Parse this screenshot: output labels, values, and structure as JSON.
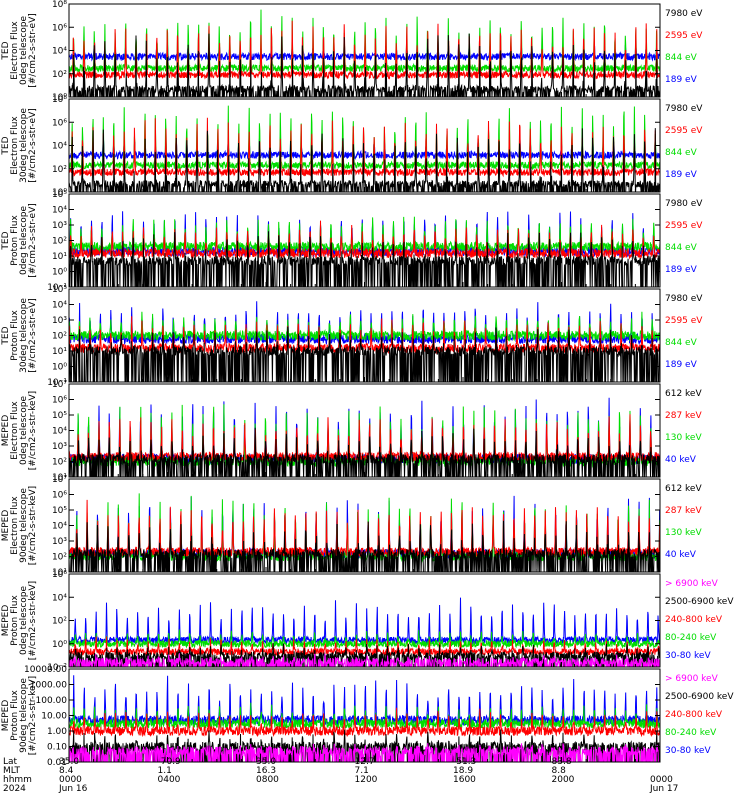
{
  "chart_data": {
    "type": "line",
    "x_time": {
      "tick_labels": [
        "0000",
        "0400",
        "0800",
        "1200",
        "1600",
        "2000",
        "0000"
      ],
      "start": "2024-06-16 00:00",
      "end": "2024-06-17 00:00"
    },
    "footer": {
      "row_labels": [
        "Lat",
        "MLT",
        "hhmm",
        "2024"
      ],
      "columns": [
        {
          "lat": "35.0",
          "mlt": "8.4",
          "hhmm": "0000",
          "date": "Jun 16"
        },
        {
          "lat": "-70.9",
          "mlt": "1.1",
          "hhmm": "0400",
          "date": ""
        },
        {
          "lat": "35.0",
          "mlt": "16.3",
          "hhmm": "0800",
          "date": ""
        },
        {
          "lat": "12.7",
          "mlt": "7.1",
          "hhmm": "1200",
          "date": ""
        },
        {
          "lat": "-51.3",
          "mlt": "18.9",
          "hhmm": "1600",
          "date": ""
        },
        {
          "lat": "83.8",
          "mlt": "8.8",
          "hhmm": "2000",
          "date": ""
        },
        {
          "lat": "",
          "mlt": "",
          "hhmm": "0000",
          "date": "Jun 17"
        }
      ]
    },
    "panels": [
      {
        "ylabel": [
          "TED",
          "Electron Flux",
          "0deg telescope",
          "[#/cm2-s-str-eV]"
        ],
        "yscale": "log",
        "ylim": [
          1,
          100000000
        ],
        "ytick_labels": [
          "10⁰",
          "10²",
          "10⁴",
          "10⁶",
          "10⁸"
        ],
        "legend": [
          {
            "name": "7980 eV",
            "color": "#000000"
          },
          {
            "name": "2595 eV",
            "color": "#ff0000"
          },
          {
            "name": "844 eV",
            "color": "#00dd00"
          },
          {
            "name": "189 eV",
            "color": "#0000ff"
          }
        ],
        "series_levels": {
          "baseline": [
            5,
            80,
            300,
            3000
          ],
          "peak_max": [
            500000,
            3000000,
            20000000,
            50000
          ]
        }
      },
      {
        "ylabel": [
          "TED",
          "Electron Flux",
          "30deg telescope",
          "[#/cm2-s-str-eV]"
        ],
        "yscale": "log",
        "ylim": [
          1,
          100000000
        ],
        "ytick_labels": [
          "10⁰",
          "10²",
          "10⁴",
          "10⁶",
          "10⁸"
        ],
        "legend": [
          {
            "name": "7980 eV",
            "color": "#000000"
          },
          {
            "name": "2595 eV",
            "color": "#ff0000"
          },
          {
            "name": "844 eV",
            "color": "#00dd00"
          },
          {
            "name": "189 eV",
            "color": "#0000ff"
          }
        ],
        "series_levels": {
          "baseline": [
            5,
            50,
            200,
            1500
          ],
          "peak_max": [
            500000,
            3000000,
            30000000,
            50000
          ]
        }
      },
      {
        "ylabel": [
          "TED",
          "Proton Flux",
          "0deg telescope",
          "[#/cm2-s-str-eV]"
        ],
        "yscale": "log",
        "ylim": [
          0.1,
          100000
        ],
        "ytick_labels": [
          "10⁻¹",
          "10⁰",
          "10¹",
          "10²",
          "10³",
          "10⁴",
          "10⁵"
        ],
        "legend": [
          {
            "name": "7980 eV",
            "color": "#000000"
          },
          {
            "name": "2595 eV",
            "color": "#ff0000"
          },
          {
            "name": "844 eV",
            "color": "#00dd00"
          },
          {
            "name": "189 eV",
            "color": "#0000ff"
          }
        ],
        "series_levels": {
          "baseline": [
            5,
            15,
            40,
            20
          ],
          "peak_max": [
            300,
            1000,
            3000,
            10000
          ]
        }
      },
      {
        "ylabel": [
          "TED",
          "Proton Flux",
          "30deg telescope",
          "[#/cm2-s-str-eV]"
        ],
        "yscale": "log",
        "ylim": [
          0.1,
          100000
        ],
        "ytick_labels": [
          "10⁻¹",
          "10⁰",
          "10¹",
          "10²",
          "10³",
          "10⁴",
          "10⁵"
        ],
        "legend": [
          {
            "name": "7980 eV",
            "color": "#000000"
          },
          {
            "name": "2595 eV",
            "color": "#ff0000"
          },
          {
            "name": "844 eV",
            "color": "#00dd00"
          },
          {
            "name": "189 eV",
            "color": "#0000ff"
          }
        ],
        "series_levels": {
          "baseline": [
            10,
            15,
            100,
            60
          ],
          "peak_max": [
            300,
            1000,
            3000,
            10000
          ]
        }
      },
      {
        "ylabel": [
          "MEPED",
          "Electron Flux",
          "0deg telescope",
          "[#/cm2-s-str-keV]"
        ],
        "yscale": "log",
        "ylim": [
          10,
          10000000
        ],
        "ytick_labels": [
          "10¹",
          "10²",
          "10³",
          "10⁴",
          "10⁵",
          "10⁶",
          "10⁷"
        ],
        "legend": [
          {
            "name": "612 keV",
            "color": "#000000"
          },
          {
            "name": "287 keV",
            "color": "#ff0000"
          },
          {
            "name": "130 keV",
            "color": "#00dd00"
          },
          {
            "name": "40 keV",
            "color": "#0000ff"
          }
        ],
        "series_levels": {
          "baseline": [
            150,
            200,
            100,
            150
          ],
          "peak_max": [
            10000,
            100000,
            1000000,
            1000000
          ]
        }
      },
      {
        "ylabel": [
          "MEPED",
          "Electron Flux",
          "90deg telescope",
          "[#/cm2-s-str-keV]"
        ],
        "yscale": "log",
        "ylim": [
          10,
          10000000
        ],
        "ytick_labels": [
          "10¹",
          "10²",
          "10³",
          "10⁴",
          "10⁵",
          "10⁶",
          "10⁷"
        ],
        "legend": [
          {
            "name": "612 keV",
            "color": "#000000"
          },
          {
            "name": "287 keV",
            "color": "#ff0000"
          },
          {
            "name": "130 keV",
            "color": "#00dd00"
          },
          {
            "name": "40 keV",
            "color": "#0000ff"
          }
        ],
        "series_levels": {
          "baseline": [
            150,
            200,
            100,
            150
          ],
          "peak_max": [
            30000,
            300000,
            1000000,
            1000000
          ]
        }
      },
      {
        "ylabel": [
          "MEPED",
          "Proton Flux",
          "0deg telescope",
          "[#/cm2-s-str-keV]"
        ],
        "yscale": "log",
        "ylim": [
          0.01,
          1000000
        ],
        "ytick_labels": [
          "10⁻²",
          "10⁰",
          "10²",
          "10⁴",
          "10⁶"
        ],
        "legend": [
          {
            "name": "> 6900 keV",
            "color": "#ff00ff"
          },
          {
            "name": "2500-6900 keV",
            "color": "#000000"
          },
          {
            "name": "240-800 keV",
            "color": "#ff0000"
          },
          {
            "name": "80-240 keV",
            "color": "#00dd00"
          },
          {
            "name": "30-80 keV",
            "color": "#0000ff"
          }
        ],
        "series_levels": {
          "baseline": [
            0.03,
            0.1,
            0.2,
            1,
            2
          ],
          "peak_max": [
            0.1,
            1,
            3,
            10,
            5000
          ]
        }
      },
      {
        "ylabel": [
          "MEPED",
          "Proton Flux",
          "90deg telescope",
          "[#/cm2-s-str-keV]"
        ],
        "yscale": "log",
        "ylim": [
          0.01,
          10000
        ],
        "ytick_labels": [
          "0.01",
          "0.10",
          "1.00",
          "10.00",
          "100.00",
          "1000.00",
          "10000.00"
        ],
        "legend": [
          {
            "name": "> 6900 keV",
            "color": "#ff00ff"
          },
          {
            "name": "2500-6900 keV",
            "color": "#000000"
          },
          {
            "name": "240-800 keV",
            "color": "#ff0000"
          },
          {
            "name": "80-240 keV",
            "color": "#00dd00"
          },
          {
            "name": "30-80 keV",
            "color": "#0000ff"
          }
        ],
        "series_levels": {
          "baseline": [
            0.05,
            0.1,
            1,
            3,
            5
          ],
          "peak_max": [
            0.1,
            1,
            20,
            50,
            3000
          ]
        }
      }
    ]
  }
}
